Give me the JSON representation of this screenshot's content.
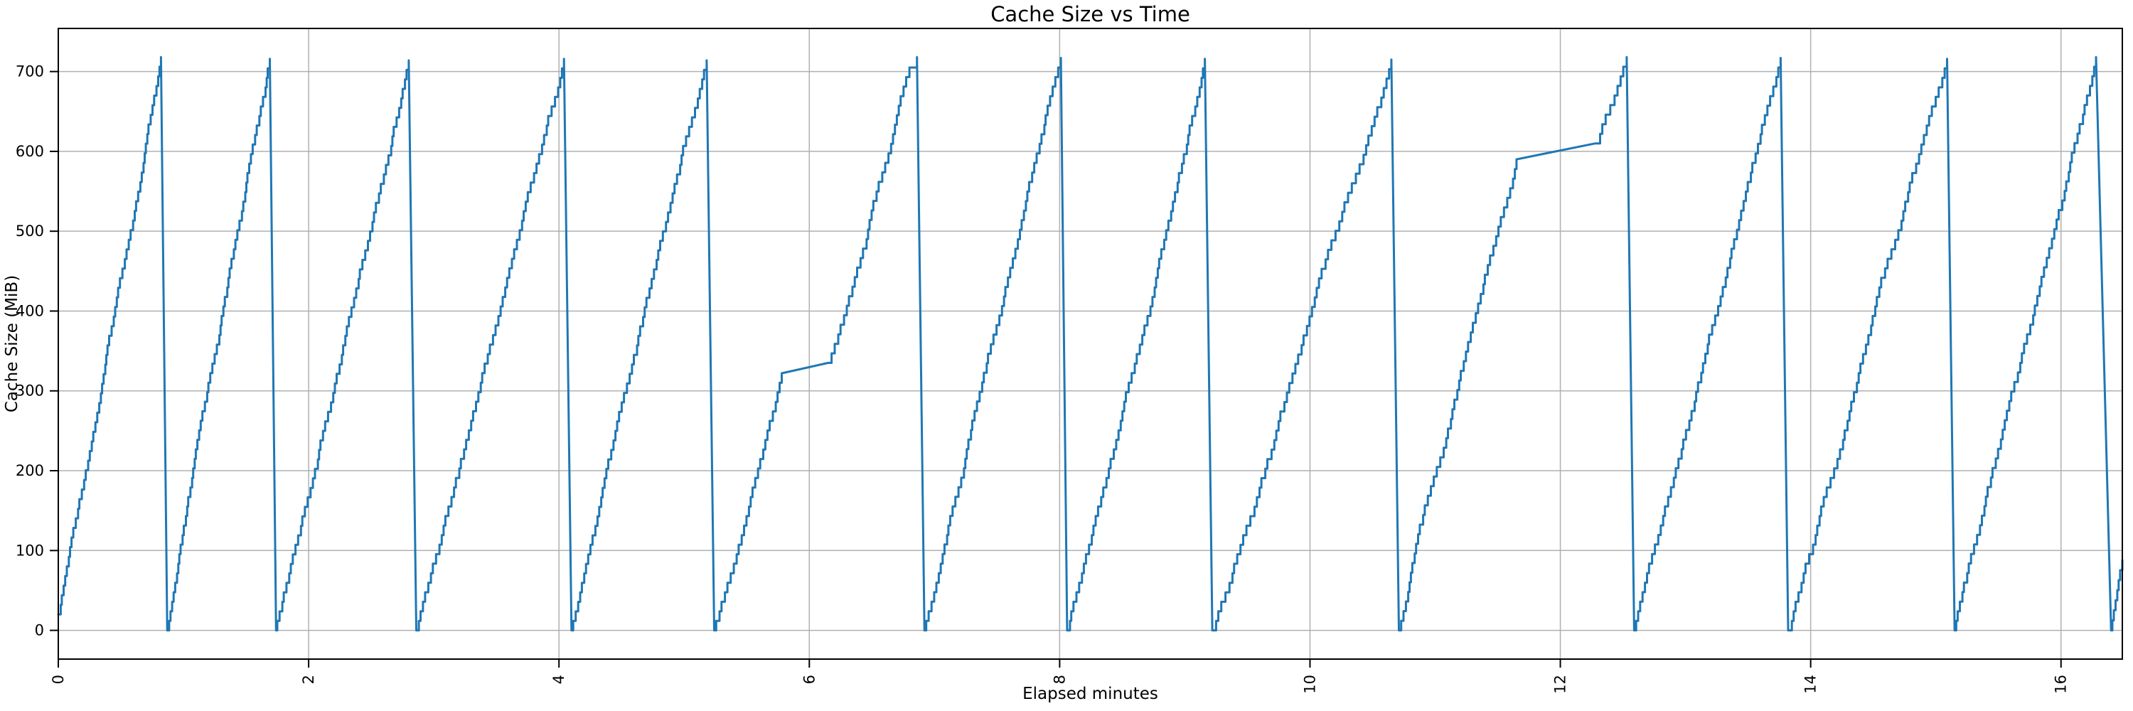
{
  "chart_data": {
    "type": "line",
    "title": "Cache Size vs Time",
    "xlabel": "Elapsed minutes",
    "ylabel": "Cache Size (MiB)",
    "x_ticks": [
      "0",
      "2",
      "4",
      "6",
      "8",
      "10",
      "12",
      "14",
      "16"
    ],
    "x_tick_values": [
      0,
      2,
      4,
      6,
      8,
      10,
      12,
      14,
      16
    ],
    "y_ticks": [
      "0",
      "100",
      "200",
      "300",
      "400",
      "500",
      "600",
      "700"
    ],
    "y_tick_values": [
      0,
      100,
      200,
      300,
      400,
      500,
      600,
      700
    ],
    "xlim": [
      0,
      16.49
    ],
    "ylim": [
      -36,
      754
    ],
    "grid": true,
    "legend_position": "none",
    "colors": {
      "line": "#1f77b4",
      "grid": "#b0b0b0",
      "axis": "#000000",
      "background": "#ffffff",
      "text": "#000000"
    },
    "line_width": 3,
    "step_mib": 12,
    "smooth_slope_threshold": 100,
    "series": [
      {
        "name": "cache-size",
        "points": [
          [
            0.0,
            20
          ],
          [
            0.82,
            718
          ],
          [
            0.87,
            0
          ],
          [
            1.69,
            716
          ],
          [
            1.74,
            0
          ],
          [
            2.8,
            714
          ],
          [
            2.86,
            0
          ],
          [
            4.04,
            716
          ],
          [
            4.1,
            0
          ],
          [
            5.18,
            714
          ],
          [
            5.24,
            0
          ],
          [
            5.78,
            322
          ],
          [
            6.15,
            335
          ],
          [
            6.8,
            705
          ],
          [
            6.86,
            718
          ],
          [
            6.92,
            0
          ],
          [
            8.01,
            717
          ],
          [
            8.06,
            0
          ],
          [
            9.16,
            716
          ],
          [
            9.22,
            0
          ],
          [
            10.65,
            715
          ],
          [
            10.71,
            0
          ],
          [
            11.65,
            590
          ],
          [
            12.28,
            610
          ],
          [
            12.53,
            718
          ],
          [
            12.59,
            0
          ],
          [
            13.76,
            717
          ],
          [
            13.82,
            0
          ],
          [
            15.09,
            716
          ],
          [
            15.15,
            0
          ],
          [
            16.28,
            718
          ],
          [
            16.4,
            0
          ],
          [
            16.49,
            88
          ]
        ]
      }
    ]
  }
}
